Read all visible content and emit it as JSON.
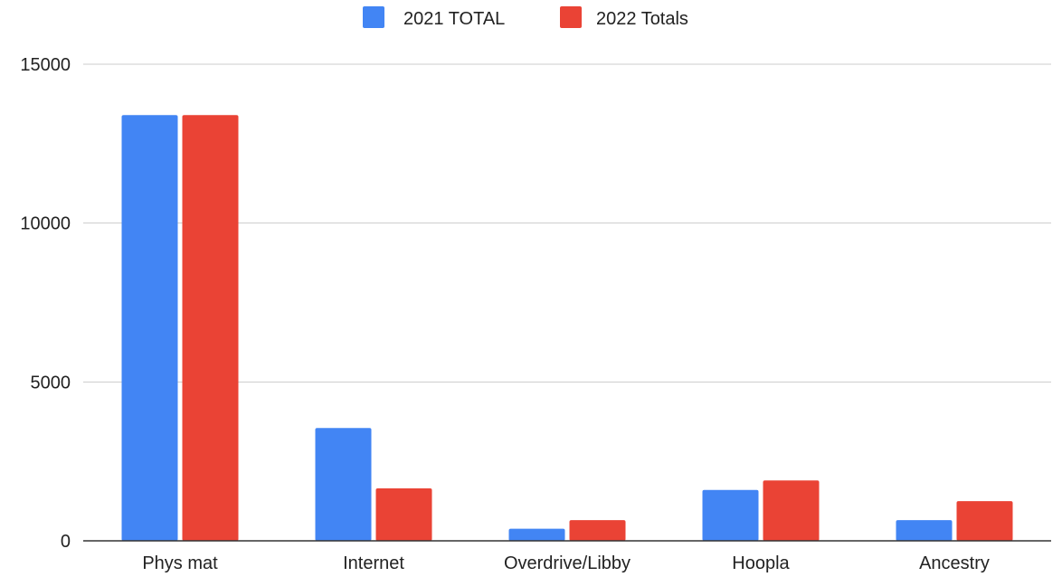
{
  "chart_data": {
    "type": "bar",
    "categories": [
      "Phys mat",
      "Internet",
      "Overdrive/Libby",
      "Hoopla",
      "Ancestry"
    ],
    "series": [
      {
        "name": "2021 TOTAL",
        "color": "#4285f4",
        "values": [
          13400,
          3550,
          380,
          1600,
          650
        ]
      },
      {
        "name": "2022 Totals",
        "color": "#ea4335",
        "values": [
          13400,
          1650,
          650,
          1900,
          1250
        ]
      }
    ],
    "ylim": [
      0,
      15000
    ],
    "yticks": [
      "0",
      "5000",
      "10000",
      "15000"
    ],
    "grid": true,
    "legend": "top-center"
  }
}
